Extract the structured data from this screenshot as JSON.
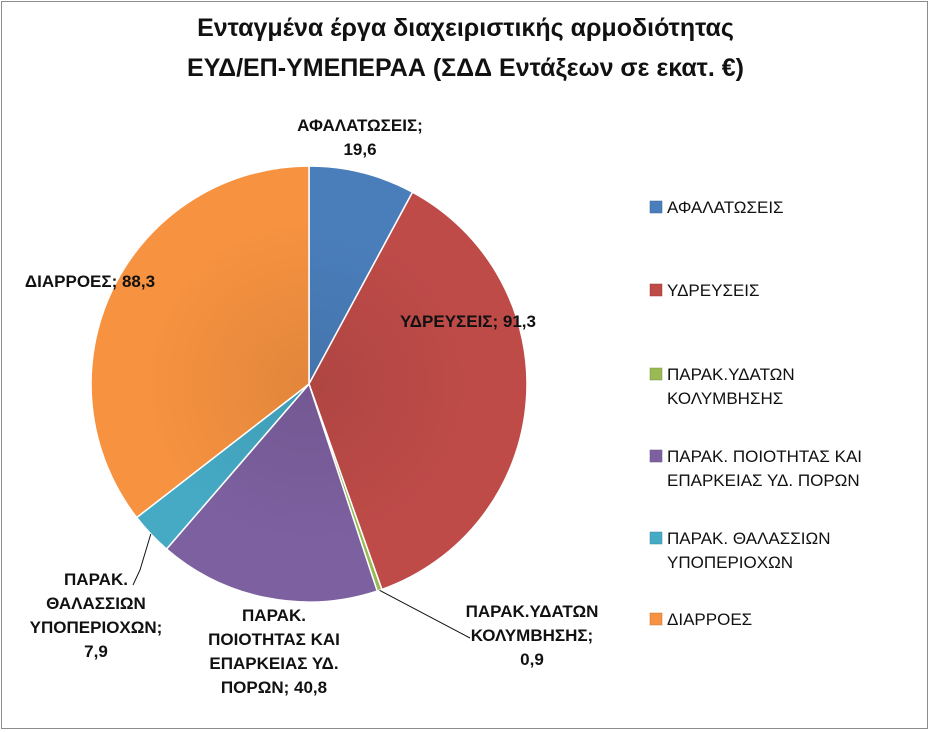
{
  "chart_data": {
    "type": "pie",
    "title_line1": "Ενταγμένα έργα διαχειριστικής αρμοδιότητας",
    "title_line2": "ΕΥΔ/ΕΠ-ΥΜΕΠΕΡΑΑ (ΣΔΔ Εντάξεων σε εκατ. €)",
    "legend_position": "right",
    "slices": [
      {
        "name": "ΑΦΑΛΑΤΩΣΕΙΣ",
        "value": 19.6,
        "value_text": "19,6",
        "color": "#4a7ebb",
        "legend_lines": [
          "ΑΦΑΛΑΤΩΣΕΙΣ"
        ],
        "label_lines": [
          "ΑΦΑΛΑΤΩΣΕΙΣ;",
          "19,6"
        ]
      },
      {
        "name": "ΥΔΡΕΥΣΕΙΣ",
        "value": 91.3,
        "value_text": "91,3",
        "color": "#be4b48",
        "legend_lines": [
          "ΥΔΡΕΥΣΕΙΣ"
        ],
        "label_lines": [
          "ΥΔΡΕΥΣΕΙΣ; 91,3"
        ]
      },
      {
        "name": "ΠΑΡΑΚ.ΥΔΑΤΩΝ ΚΟΛΥΜΒΗΣΗΣ",
        "value": 0.9,
        "value_text": "0,9",
        "color": "#98b954",
        "legend_lines": [
          "ΠΑΡΑΚ.ΥΔΑΤΩΝ",
          "ΚΟΛΥΜΒΗΣΗΣ"
        ],
        "label_lines": [
          "ΠΑΡΑΚ.ΥΔΑΤΩΝ",
          "ΚΟΛΥΜΒΗΣΗΣ;",
          "0,9"
        ]
      },
      {
        "name": "ΠΑΡΑΚ. ΠΟΙΟΤΗΤΑΣ ΚΑΙ ΕΠΑΡΚΕΙΑΣ ΥΔ. ΠΟΡΩΝ",
        "value": 40.8,
        "value_text": "40,8",
        "color": "#7d60a0",
        "legend_lines": [
          "ΠΑΡΑΚ. ΠΟΙΟΤΗΤΑΣ ΚΑΙ",
          "ΕΠΑΡΚΕΙΑΣ ΥΔ. ΠΟΡΩΝ"
        ],
        "label_lines": [
          "ΠΑΡΑΚ.",
          "ΠΟΙΟΤΗΤΑΣ ΚΑΙ",
          "ΕΠΑΡΚΕΙΑΣ ΥΔ.",
          "ΠΟΡΩΝ; 40,8"
        ]
      },
      {
        "name": "ΠΑΡΑΚ. ΘΑΛΑΣΣΙΩΝ ΥΠΟΠΕΡΙΟΧΩΝ",
        "value": 7.9,
        "value_text": "7,9",
        "color": "#46aac5",
        "legend_lines": [
          "ΠΑΡΑΚ. ΘΑΛΑΣΣΙΩΝ",
          "ΥΠΟΠΕΡΙΟΧΩΝ"
        ],
        "label_lines": [
          "ΠΑΡΑΚ.",
          "ΘΑΛΑΣΣΙΩΝ",
          "ΥΠΟΠΕΡΙΟΧΩΝ;",
          "7,9"
        ]
      },
      {
        "name": "ΔΙΑΡΡΟΕΣ",
        "value": 88.3,
        "value_text": "88,3",
        "color": "#f69240",
        "legend_lines": [
          "ΔΙΑΡΡΟΕΣ"
        ],
        "label_lines": [
          "ΔΙΑΡΡΟΕΣ; 88,3"
        ]
      }
    ]
  }
}
